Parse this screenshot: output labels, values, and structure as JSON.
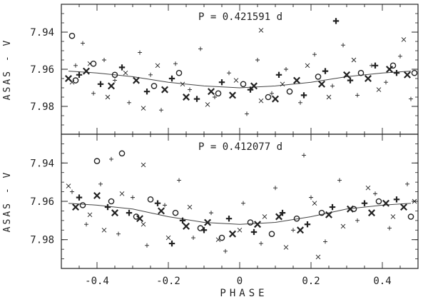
{
  "chart_data": [
    {
      "type": "scatter",
      "annotation": "P = 0.421591 d",
      "ylabel": "ASAS - V",
      "xlim": [
        -0.5,
        0.5
      ],
      "ylim": [
        7.995,
        7.925
      ],
      "y_inverted": true,
      "yticks": [
        "7.94",
        "7.96",
        "7.98"
      ],
      "xticks": [
        "-0.4",
        "-0.2",
        "0",
        "0.2",
        "0.4"
      ],
      "fit_curve": [
        {
          "x": -0.48,
          "y": 7.961
        },
        {
          "x": -0.4,
          "y": 7.962
        },
        {
          "x": -0.3,
          "y": 7.964
        },
        {
          "x": -0.2,
          "y": 7.967
        },
        {
          "x": -0.1,
          "y": 7.969
        },
        {
          "x": 0.0,
          "y": 7.97
        },
        {
          "x": 0.1,
          "y": 7.969
        },
        {
          "x": 0.2,
          "y": 7.967
        },
        {
          "x": 0.3,
          "y": 7.964
        },
        {
          "x": 0.4,
          "y": 7.962
        },
        {
          "x": 0.48,
          "y": 7.961
        }
      ],
      "series": [
        {
          "marker": "plus-small",
          "points": [
            {
              "x": -0.46,
              "y": 7.958
            },
            {
              "x": -0.44,
              "y": 7.946
            },
            {
              "x": -0.41,
              "y": 7.973
            },
            {
              "x": -0.38,
              "y": 7.955
            },
            {
              "x": -0.35,
              "y": 7.966
            },
            {
              "x": -0.31,
              "y": 7.978
            },
            {
              "x": -0.28,
              "y": 7.951
            },
            {
              "x": -0.25,
              "y": 7.963
            },
            {
              "x": -0.22,
              "y": 7.982
            },
            {
              "x": -0.18,
              "y": 7.957
            },
            {
              "x": -0.14,
              "y": 7.971
            },
            {
              "x": -0.11,
              "y": 7.949
            },
            {
              "x": -0.07,
              "y": 7.975
            },
            {
              "x": -0.03,
              "y": 7.962
            },
            {
              "x": 0.02,
              "y": 7.984
            },
            {
              "x": 0.05,
              "y": 7.955
            },
            {
              "x": 0.09,
              "y": 7.973
            },
            {
              "x": 0.13,
              "y": 7.96
            },
            {
              "x": 0.17,
              "y": 7.978
            },
            {
              "x": 0.21,
              "y": 7.952
            },
            {
              "x": 0.26,
              "y": 7.969
            },
            {
              "x": 0.29,
              "y": 7.947
            },
            {
              "x": 0.33,
              "y": 7.974
            },
            {
              "x": 0.37,
              "y": 7.958
            },
            {
              "x": 0.41,
              "y": 7.967
            },
            {
              "x": 0.45,
              "y": 7.953
            },
            {
              "x": 0.48,
              "y": 7.976
            }
          ]
        },
        {
          "marker": "plus-bold",
          "points": [
            {
              "x": -0.45,
              "y": 7.963
            },
            {
              "x": -0.39,
              "y": 7.968
            },
            {
              "x": -0.33,
              "y": 7.959
            },
            {
              "x": -0.26,
              "y": 7.972
            },
            {
              "x": -0.19,
              "y": 7.965
            },
            {
              "x": -0.12,
              "y": 7.976
            },
            {
              "x": -0.05,
              "y": 7.967
            },
            {
              "x": 0.03,
              "y": 7.971
            },
            {
              "x": 0.11,
              "y": 7.963
            },
            {
              "x": 0.18,
              "y": 7.974
            },
            {
              "x": 0.24,
              "y": 7.961
            },
            {
              "x": 0.31,
              "y": 7.966
            },
            {
              "x": 0.38,
              "y": 7.958
            },
            {
              "x": 0.44,
              "y": 7.962
            },
            {
              "x": 0.27,
              "y": 7.934
            }
          ]
        },
        {
          "marker": "cross-small",
          "points": [
            {
              "x": -0.47,
              "y": 7.967
            },
            {
              "x": -0.42,
              "y": 7.957
            },
            {
              "x": -0.37,
              "y": 7.975
            },
            {
              "x": -0.32,
              "y": 7.962
            },
            {
              "x": -0.27,
              "y": 7.981
            },
            {
              "x": -0.23,
              "y": 7.958
            },
            {
              "x": -0.16,
              "y": 7.968
            },
            {
              "x": -0.09,
              "y": 7.979
            },
            {
              "x": -0.01,
              "y": 7.966
            },
            {
              "x": 0.06,
              "y": 7.977
            },
            {
              "x": 0.12,
              "y": 7.968
            },
            {
              "x": 0.19,
              "y": 7.958
            },
            {
              "x": 0.25,
              "y": 7.975
            },
            {
              "x": 0.32,
              "y": 7.955
            },
            {
              "x": 0.39,
              "y": 7.971
            },
            {
              "x": 0.46,
              "y": 7.944
            },
            {
              "x": 0.06,
              "y": 7.939
            }
          ]
        },
        {
          "marker": "cross-bold",
          "points": [
            {
              "x": -0.48,
              "y": 7.965
            },
            {
              "x": -0.43,
              "y": 7.961
            },
            {
              "x": -0.36,
              "y": 7.969
            },
            {
              "x": -0.29,
              "y": 7.966
            },
            {
              "x": -0.21,
              "y": 7.971
            },
            {
              "x": -0.15,
              "y": 7.975
            },
            {
              "x": -0.08,
              "y": 7.972
            },
            {
              "x": -0.02,
              "y": 7.974
            },
            {
              "x": 0.04,
              "y": 7.969
            },
            {
              "x": 0.1,
              "y": 7.976
            },
            {
              "x": 0.16,
              "y": 7.966
            },
            {
              "x": 0.23,
              "y": 7.968
            },
            {
              "x": 0.3,
              "y": 7.963
            },
            {
              "x": 0.36,
              "y": 7.965
            },
            {
              "x": 0.42,
              "y": 7.96
            },
            {
              "x": 0.47,
              "y": 7.963
            }
          ]
        },
        {
          "marker": "circle",
          "points": [
            {
              "x": -0.46,
              "y": 7.966
            },
            {
              "x": -0.41,
              "y": 7.957
            },
            {
              "x": -0.35,
              "y": 7.963
            },
            {
              "x": -0.24,
              "y": 7.969
            },
            {
              "x": -0.17,
              "y": 7.962
            },
            {
              "x": -0.06,
              "y": 7.973
            },
            {
              "x": 0.01,
              "y": 7.968
            },
            {
              "x": 0.08,
              "y": 7.975
            },
            {
              "x": 0.14,
              "y": 7.972
            },
            {
              "x": 0.22,
              "y": 7.964
            },
            {
              "x": 0.34,
              "y": 7.962
            },
            {
              "x": 0.43,
              "y": 7.958
            },
            {
              "x": 0.49,
              "y": 7.962
            },
            {
              "x": -0.47,
              "y": 7.942
            }
          ]
        }
      ]
    },
    {
      "type": "scatter",
      "annotation": "P = 0.412077 d",
      "ylabel": "ASAS - V",
      "xlabel": "PHASE",
      "xlim": [
        -0.5,
        0.5
      ],
      "ylim": [
        7.995,
        7.925
      ],
      "y_inverted": true,
      "yticks": [
        "7.94",
        "7.96",
        "7.98"
      ],
      "xticks": [
        "-0.4",
        "-0.2",
        "0",
        "0.2",
        "0.4"
      ],
      "fit_curve": [
        {
          "x": -0.48,
          "y": 7.961
        },
        {
          "x": -0.4,
          "y": 7.962
        },
        {
          "x": -0.3,
          "y": 7.964
        },
        {
          "x": -0.2,
          "y": 7.968
        },
        {
          "x": -0.1,
          "y": 7.971
        },
        {
          "x": 0.0,
          "y": 7.972
        },
        {
          "x": 0.1,
          "y": 7.971
        },
        {
          "x": 0.2,
          "y": 7.968
        },
        {
          "x": 0.3,
          "y": 7.964
        },
        {
          "x": 0.4,
          "y": 7.962
        },
        {
          "x": 0.48,
          "y": 7.961
        }
      ],
      "series": [
        {
          "marker": "plus-small",
          "points": [
            {
              "x": -0.47,
              "y": 7.955
            },
            {
              "x": -0.43,
              "y": 7.972
            },
            {
              "x": -0.39,
              "y": 7.951
            },
            {
              "x": -0.34,
              "y": 7.977
            },
            {
              "x": -0.3,
              "y": 7.958
            },
            {
              "x": -0.26,
              "y": 7.983
            },
            {
              "x": -0.21,
              "y": 7.962
            },
            {
              "x": -0.17,
              "y": 7.949
            },
            {
              "x": -0.13,
              "y": 7.979
            },
            {
              "x": -0.08,
              "y": 7.966
            },
            {
              "x": -0.04,
              "y": 7.986
            },
            {
              "x": 0.01,
              "y": 7.961
            },
            {
              "x": 0.06,
              "y": 7.982
            },
            {
              "x": 0.1,
              "y": 7.953
            },
            {
              "x": 0.15,
              "y": 7.975
            },
            {
              "x": 0.2,
              "y": 7.958
            },
            {
              "x": 0.24,
              "y": 7.981
            },
            {
              "x": 0.28,
              "y": 7.949
            },
            {
              "x": 0.33,
              "y": 7.97
            },
            {
              "x": 0.38,
              "y": 7.956
            },
            {
              "x": 0.42,
              "y": 7.974
            },
            {
              "x": 0.47,
              "y": 7.951
            },
            {
              "x": -0.36,
              "y": 7.938
            },
            {
              "x": 0.18,
              "y": 7.936
            }
          ]
        },
        {
          "marker": "plus-bold",
          "points": [
            {
              "x": -0.45,
              "y": 7.958
            },
            {
              "x": -0.37,
              "y": 7.963
            },
            {
              "x": -0.31,
              "y": 7.966
            },
            {
              "x": -0.23,
              "y": 7.961
            },
            {
              "x": -0.16,
              "y": 7.97
            },
            {
              "x": -0.1,
              "y": 7.975
            },
            {
              "x": -0.03,
              "y": 7.969
            },
            {
              "x": 0.04,
              "y": 7.976
            },
            {
              "x": 0.12,
              "y": 7.966
            },
            {
              "x": 0.19,
              "y": 7.972
            },
            {
              "x": 0.26,
              "y": 7.963
            },
            {
              "x": 0.35,
              "y": 7.961
            },
            {
              "x": 0.44,
              "y": 7.959
            },
            {
              "x": -0.19,
              "y": 7.982
            }
          ]
        },
        {
          "marker": "cross-small",
          "points": [
            {
              "x": -0.48,
              "y": 7.952
            },
            {
              "x": -0.42,
              "y": 7.967
            },
            {
              "x": -0.38,
              "y": 7.975
            },
            {
              "x": -0.33,
              "y": 7.956
            },
            {
              "x": -0.27,
              "y": 7.972
            },
            {
              "x": -0.2,
              "y": 7.979
            },
            {
              "x": -0.14,
              "y": 7.963
            },
            {
              "x": -0.06,
              "y": 7.98
            },
            {
              "x": 0.0,
              "y": 7.975
            },
            {
              "x": 0.07,
              "y": 7.968
            },
            {
              "x": 0.13,
              "y": 7.984
            },
            {
              "x": 0.21,
              "y": 7.961
            },
            {
              "x": 0.29,
              "y": 7.973
            },
            {
              "x": 0.36,
              "y": 7.953
            },
            {
              "x": 0.43,
              "y": 7.968
            },
            {
              "x": 0.49,
              "y": 7.96
            },
            {
              "x": -0.27,
              "y": 7.941
            },
            {
              "x": 0.22,
              "y": 7.989
            }
          ]
        },
        {
          "marker": "cross-bold",
          "points": [
            {
              "x": -0.46,
              "y": 7.963
            },
            {
              "x": -0.4,
              "y": 7.957
            },
            {
              "x": -0.35,
              "y": 7.966
            },
            {
              "x": -0.28,
              "y": 7.969
            },
            {
              "x": -0.22,
              "y": 7.965
            },
            {
              "x": -0.15,
              "y": 7.973
            },
            {
              "x": -0.09,
              "y": 7.971
            },
            {
              "x": -0.02,
              "y": 7.977
            },
            {
              "x": 0.05,
              "y": 7.972
            },
            {
              "x": 0.11,
              "y": 7.968
            },
            {
              "x": 0.17,
              "y": 7.975
            },
            {
              "x": 0.25,
              "y": 7.967
            },
            {
              "x": 0.31,
              "y": 7.964
            },
            {
              "x": 0.37,
              "y": 7.966
            },
            {
              "x": 0.41,
              "y": 7.961
            },
            {
              "x": 0.46,
              "y": 7.963
            }
          ]
        },
        {
          "marker": "circle",
          "points": [
            {
              "x": -0.44,
              "y": 7.962
            },
            {
              "x": -0.36,
              "y": 7.96
            },
            {
              "x": -0.29,
              "y": 7.968
            },
            {
              "x": -0.25,
              "y": 7.959
            },
            {
              "x": -0.18,
              "y": 7.966
            },
            {
              "x": -0.11,
              "y": 7.974
            },
            {
              "x": -0.05,
              "y": 7.979
            },
            {
              "x": 0.03,
              "y": 7.971
            },
            {
              "x": 0.09,
              "y": 7.977
            },
            {
              "x": 0.16,
              "y": 7.969
            },
            {
              "x": 0.23,
              "y": 7.966
            },
            {
              "x": 0.32,
              "y": 7.964
            },
            {
              "x": 0.39,
              "y": 7.96
            },
            {
              "x": 0.48,
              "y": 7.968
            },
            {
              "x": -0.4,
              "y": 7.939
            },
            {
              "x": -0.33,
              "y": 7.935
            }
          ]
        }
      ]
    }
  ]
}
